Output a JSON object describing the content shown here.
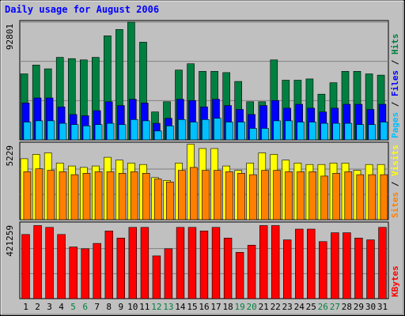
{
  "chart_data": {
    "title": "Daily usage for August 2006",
    "x": [
      "1",
      "2",
      "3",
      "4",
      "5",
      "6",
      "7",
      "8",
      "9",
      "10",
      "11",
      "12",
      "13",
      "14",
      "15",
      "16",
      "17",
      "18",
      "19",
      "20",
      "21",
      "22",
      "23",
      "24",
      "25",
      "26",
      "27",
      "28",
      "29",
      "30",
      "31"
    ],
    "weekend_days": [
      "5",
      "6",
      "12",
      "13",
      "19",
      "20",
      "26",
      "27"
    ],
    "panels": [
      {
        "type": "bar",
        "ymax_label": "92801",
        "ymax": 92801,
        "axis_label": [
          "Pages",
          "Files",
          "Hits"
        ],
        "series": [
          {
            "name": "Hits",
            "color": "#008040",
            "values": [
              52000,
              59000,
              56000,
              65000,
              64000,
              63000,
              65000,
              82000,
              87000,
              92800,
              77000,
              22000,
              30000,
              55000,
              60000,
              54000,
              54000,
              53000,
              46000,
              30000,
              30000,
              63000,
              47000,
              47000,
              48000,
              36000,
              45000,
              54000,
              54000,
              52000,
              51000
            ]
          },
          {
            "name": "Files",
            "color": "#0000ff",
            "values": [
              29000,
              33000,
              33000,
              26000,
              20000,
              19000,
              23000,
              30000,
              27000,
              32000,
              29000,
              13000,
              17000,
              32000,
              31000,
              26000,
              32000,
              27000,
              24000,
              20000,
              27000,
              31000,
              25000,
              28000,
              25000,
              22000,
              25000,
              28000,
              28000,
              24000,
              28000
            ]
          },
          {
            "name": "Pages",
            "color": "#00c0ff",
            "values": [
              14000,
              15000,
              15000,
              13000,
              12000,
              11000,
              12000,
              13000,
              12000,
              16000,
              15000,
              7000,
              11000,
              16000,
              14000,
              16000,
              17000,
              14000,
              14000,
              9000,
              9000,
              15000,
              15000,
              14000,
              14000,
              13000,
              13000,
              13000,
              12000,
              12000,
              14000
            ]
          }
        ]
      },
      {
        "type": "bar",
        "ymax_label": "5229",
        "ymax": 5229,
        "axis_label": [
          "Sites",
          "Visits"
        ],
        "series": [
          {
            "name": "Visits",
            "color": "#ffff00",
            "values": [
              4200,
              4500,
              4600,
              3900,
              3700,
              3600,
              3700,
              4300,
              4100,
              3900,
              3800,
              2900,
              2700,
              3900,
              5200,
              4900,
              4900,
              3700,
              3400,
              3900,
              4600,
              4500,
              4100,
              3900,
              3800,
              3800,
              3900,
              3900,
              3400,
              3800,
              3800
            ]
          },
          {
            "name": "Sites",
            "color": "#ff8000",
            "values": [
              3300,
              3500,
              3400,
              3300,
              3100,
              3200,
              3300,
              3300,
              3200,
              3300,
              3200,
              2800,
              2600,
              3400,
              3600,
              3400,
              3400,
              3300,
              3200,
              3100,
              3400,
              3400,
              3300,
              3300,
              3300,
              3000,
              3200,
              3300,
              3100,
              3100,
              3100
            ]
          }
        ]
      },
      {
        "type": "bar",
        "ymax_label": "421259",
        "ymax": 421259,
        "axis_label": [
          "KBytes"
        ],
        "series": [
          {
            "name": "KBytes",
            "color": "#ff0000",
            "values": [
              360000,
              410000,
              400000,
              360000,
              290000,
              280000,
              310000,
              380000,
              340000,
              400000,
              400000,
              240000,
              280000,
              400000,
              400000,
              380000,
              400000,
              340000,
              260000,
              300000,
              410000,
              410000,
              330000,
              390000,
              390000,
              320000,
              370000,
              370000,
              340000,
              330000,
              400000
            ]
          }
        ]
      }
    ]
  }
}
